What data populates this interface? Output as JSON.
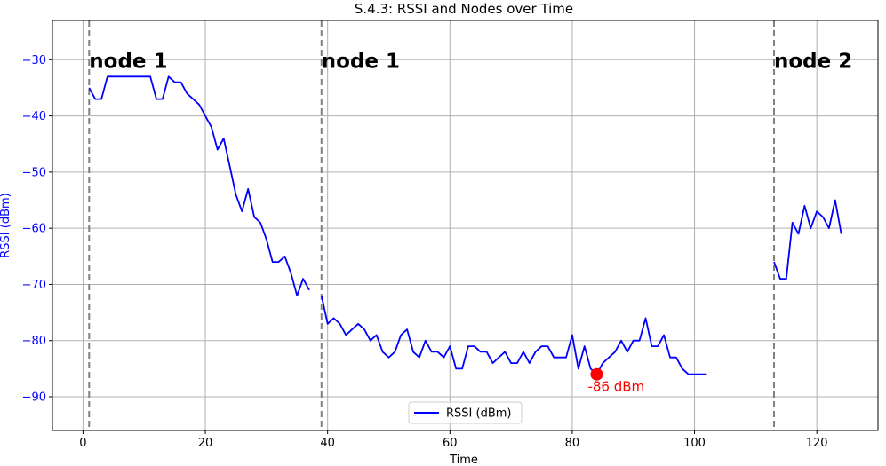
{
  "chart_data": {
    "type": "line",
    "title": "S.4.3: RSSI and Nodes over Time",
    "xlabel": "Time",
    "ylabel": "RSSI (dBm)",
    "xlim": [
      -5,
      130
    ],
    "ylim": [
      -96,
      -23
    ],
    "xticks": [
      0,
      20,
      40,
      60,
      80,
      100,
      120
    ],
    "yticks": [
      -90,
      -80,
      -70,
      -60,
      -50,
      -40,
      -30
    ],
    "grid": true,
    "legend_position": "bottom-center",
    "colors": {
      "line": "#0000ff",
      "ytick_text": "#0000ff",
      "ylabel_text": "#0000ff",
      "grid": "#b0b0b0",
      "vline": "#808080",
      "annotation": "#ff0000"
    },
    "series": [
      {
        "name": "RSSI (dBm)",
        "segments": [
          {
            "x": [
              1,
              2,
              3,
              4,
              5,
              6,
              7,
              8,
              9,
              10,
              11,
              12,
              13,
              14,
              15,
              16,
              17,
              18,
              19,
              20,
              21,
              22,
              23,
              24,
              25,
              26,
              27,
              28,
              29,
              30,
              31,
              32,
              33,
              34,
              35,
              36,
              37
            ],
            "y": [
              -35,
              -37,
              -37,
              -33,
              -33,
              -33,
              -33,
              -33,
              -33,
              -33,
              -33,
              -37,
              -37,
              -33,
              -34,
              -34,
              -36,
              -37,
              -38,
              -40,
              -42,
              -46,
              -44,
              -49,
              -54,
              -57,
              -53,
              -58,
              -59,
              -62,
              -66,
              -66,
              -65,
              -68,
              -72,
              -69,
              -71
            ]
          },
          {
            "x": [
              39,
              40,
              41,
              42,
              43,
              44,
              45,
              46,
              47,
              48,
              49,
              50,
              51,
              52,
              53,
              54,
              55,
              56,
              57,
              58,
              59,
              60,
              61,
              62,
              63,
              64,
              65,
              66,
              67,
              68,
              69,
              70,
              71,
              72,
              73,
              74,
              75,
              76,
              77,
              78,
              79,
              80,
              81,
              82,
              83,
              84,
              85,
              86,
              87,
              88,
              89,
              90,
              91,
              92,
              93,
              94,
              95,
              96,
              97,
              98,
              99,
              100,
              101,
              102
            ],
            "y": [
              -72,
              -77,
              -76,
              -77,
              -79,
              -78,
              -77,
              -78,
              -80,
              -79,
              -82,
              -83,
              -82,
              -79,
              -78,
              -82,
              -83,
              -80,
              -82,
              -82,
              -83,
              -81,
              -85,
              -85,
              -81,
              -81,
              -82,
              -82,
              -84,
              -83,
              -82,
              -84,
              -84,
              -82,
              -84,
              -82,
              -81,
              -81,
              -83,
              -83,
              -83,
              -79,
              -85,
              -81,
              -85,
              -86,
              -84,
              -83,
              -82,
              -80,
              -82,
              -80,
              -80,
              -76,
              -81,
              -81,
              -79,
              -83,
              -83,
              -85,
              -86,
              -86,
              -86,
              -86
            ]
          },
          {
            "x": [
              113,
              114,
              115,
              116,
              117,
              118,
              119,
              120,
              121,
              122,
              123,
              124
            ],
            "y": [
              -66,
              -69,
              -69,
              -59,
              -61,
              -56,
              -60,
              -57,
              -58,
              -60,
              -55,
              -61
            ]
          }
        ]
      }
    ],
    "vlines": [
      {
        "x": 1,
        "label": "node 1"
      },
      {
        "x": 39,
        "label": "node 1"
      },
      {
        "x": 113,
        "label": "node 2"
      }
    ],
    "annotations": [
      {
        "x": 84,
        "y": -86,
        "text": "-86 dBm"
      }
    ]
  }
}
